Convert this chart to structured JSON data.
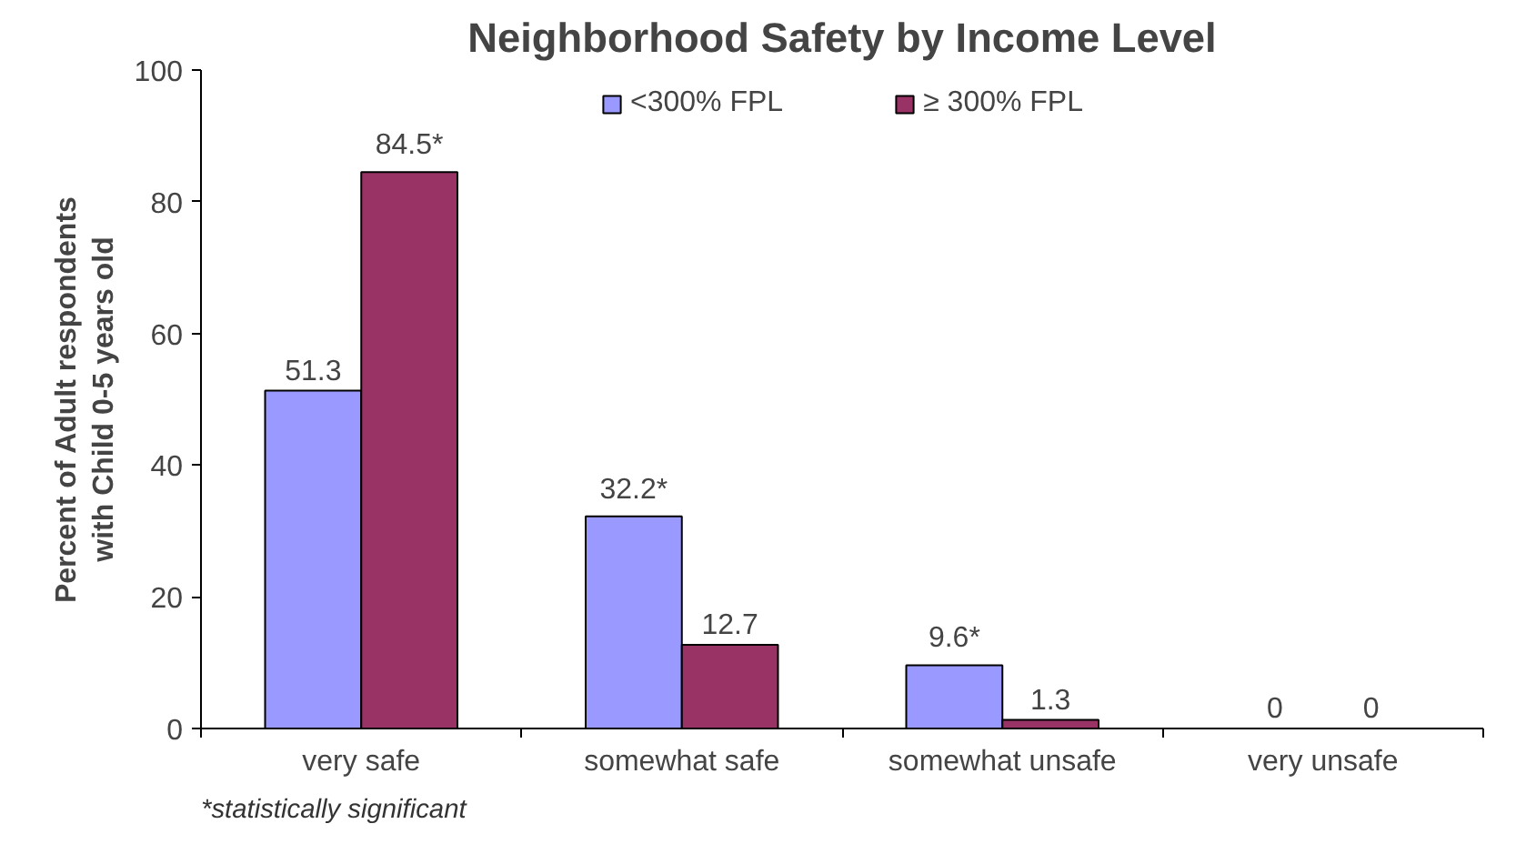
{
  "chart_data": {
    "type": "bar",
    "title": "Neighborhood Safety by Income Level",
    "ylabel": "Percent of Adult respondents\nwith Child 0-5 years old",
    "categories": [
      "very safe",
      "somewhat safe",
      "somewhat unsafe",
      "very unsafe"
    ],
    "series": [
      {
        "name": "<300% FPL",
        "color": "#9999ff",
        "values": [
          51.3,
          32.2,
          9.6,
          0
        ],
        "value_labels": [
          "51.3",
          "32.2*",
          "9.6*",
          "0"
        ]
      },
      {
        "name": "≥ 300% FPL",
        "color": "#993366",
        "values": [
          84.5,
          12.7,
          1.3,
          0
        ],
        "value_labels": [
          "84.5*",
          "12.7",
          "1.3",
          "0"
        ]
      }
    ],
    "ylim": [
      0,
      100
    ],
    "yticks": [
      0,
      20,
      40,
      60,
      80,
      100
    ],
    "grid": false,
    "legend": "top",
    "annotations": [
      "*statistically significant"
    ]
  }
}
